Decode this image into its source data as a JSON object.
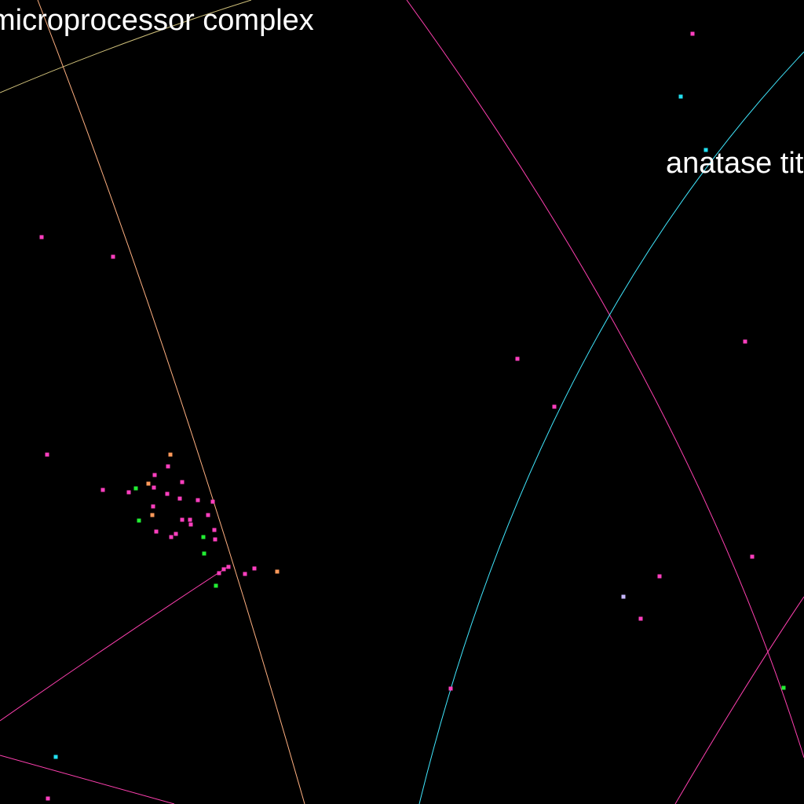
{
  "labels": {
    "microprocessor": "microprocessor complex",
    "anatase": "anatase titanium"
  },
  "colors": {
    "background": "#000000",
    "label": "#ffffff",
    "magenta": "#ff3fbf",
    "orange": "#ff9a5a",
    "green": "#22ee33",
    "cyan": "#22e0f0",
    "lavender": "#c8b8ff",
    "line_khaki": "#cfc07a",
    "line_orange": "#ffb080",
    "line_magenta": "#ff40b0",
    "line_cyan": "#40e8ff"
  }
}
